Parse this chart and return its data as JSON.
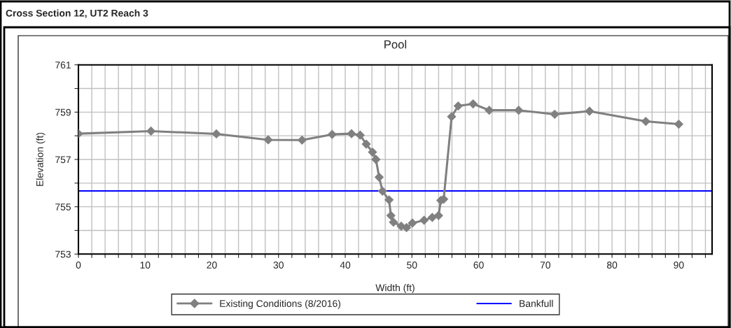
{
  "chart_data": {
    "type": "line",
    "title": "Pool",
    "subtitle": "Cross Section 12, UT2 Reach 3",
    "xlabel": "Width (ft)",
    "ylabel": "Elevation (ft)",
    "xlim": [
      0,
      95
    ],
    "ylim": [
      753,
      761
    ],
    "xticks": [
      0,
      {
        "value": 2,
        "label": null
      },
      {
        "value": 4,
        "label": null
      },
      {
        "value": 6,
        "label": null
      },
      {
        "value": 8,
        "label": null
      },
      10,
      {
        "value": 12,
        "label": null
      },
      {
        "value": 14,
        "label": null
      },
      {
        "value": 16,
        "label": null
      },
      {
        "value": 18,
        "label": null
      },
      20,
      {
        "value": 22,
        "label": null
      },
      {
        "value": 24,
        "label": null
      },
      {
        "value": 26,
        "label": null
      },
      {
        "value": 28,
        "label": null
      },
      30,
      {
        "value": 32,
        "label": null
      },
      {
        "value": 34,
        "label": null
      },
      {
        "value": 36,
        "label": null
      },
      {
        "value": 38,
        "label": null
      },
      40,
      {
        "value": 42,
        "label": null
      },
      {
        "value": 44,
        "label": null
      },
      {
        "value": 46,
        "label": null
      },
      {
        "value": 48,
        "label": null
      },
      50,
      {
        "value": 52,
        "label": null
      },
      {
        "value": 54,
        "label": null
      },
      {
        "value": 56,
        "label": null
      },
      {
        "value": 58,
        "label": null
      },
      60,
      {
        "value": 62,
        "label": null
      },
      {
        "value": 64,
        "label": null
      },
      {
        "value": 66,
        "label": null
      },
      {
        "value": 68,
        "label": null
      },
      70,
      {
        "value": 72,
        "label": null
      },
      {
        "value": 74,
        "label": null
      },
      {
        "value": 76,
        "label": null
      },
      {
        "value": 78,
        "label": null
      },
      80,
      {
        "value": 82,
        "label": null
      },
      {
        "value": 84,
        "label": null
      },
      {
        "value": 86,
        "label": null
      },
      {
        "value": 88,
        "label": null
      },
      90,
      {
        "value": 92,
        "label": null
      },
      {
        "value": 94,
        "label": null
      }
    ],
    "yticks": [
      753,
      {
        "value": 754,
        "label": null
      },
      755,
      {
        "value": 756,
        "label": null
      },
      757,
      {
        "value": 758,
        "label": null
      },
      759,
      {
        "value": 760,
        "label": null
      },
      761
    ],
    "grid": true,
    "legend": "bottom",
    "series": [
      {
        "name": "Existing Conditions (8/2016)",
        "color": "#808080",
        "marker": "diamond",
        "x": [
          0,
          10.88,
          20.68,
          28.45,
          33.53,
          38.04,
          40.94,
          42.24,
          43.15,
          44.09,
          44.6,
          45.09,
          45.59,
          46.57,
          46.85,
          47.23,
          48.39,
          49.19,
          50.07,
          51.82,
          53.05,
          53.99,
          54.34,
          54.76,
          55.95,
          56.93,
          59.17,
          61.59,
          66.0,
          71.4,
          76.62,
          85.06,
          90.0
        ],
        "values": [
          758.09,
          758.2,
          758.08,
          757.83,
          757.82,
          758.06,
          758.09,
          758.03,
          757.65,
          757.31,
          757.0,
          756.25,
          755.66,
          755.29,
          754.63,
          754.35,
          754.18,
          754.12,
          754.31,
          754.43,
          754.55,
          754.63,
          755.27,
          755.32,
          758.81,
          759.26,
          759.35,
          759.08,
          759.08,
          758.91,
          759.04,
          758.61,
          758.49
        ]
      },
      {
        "name": "Bankfull",
        "color": "#0000ff",
        "marker": "none",
        "x": [
          0,
          95
        ],
        "values": [
          755.67,
          755.67
        ]
      }
    ]
  }
}
